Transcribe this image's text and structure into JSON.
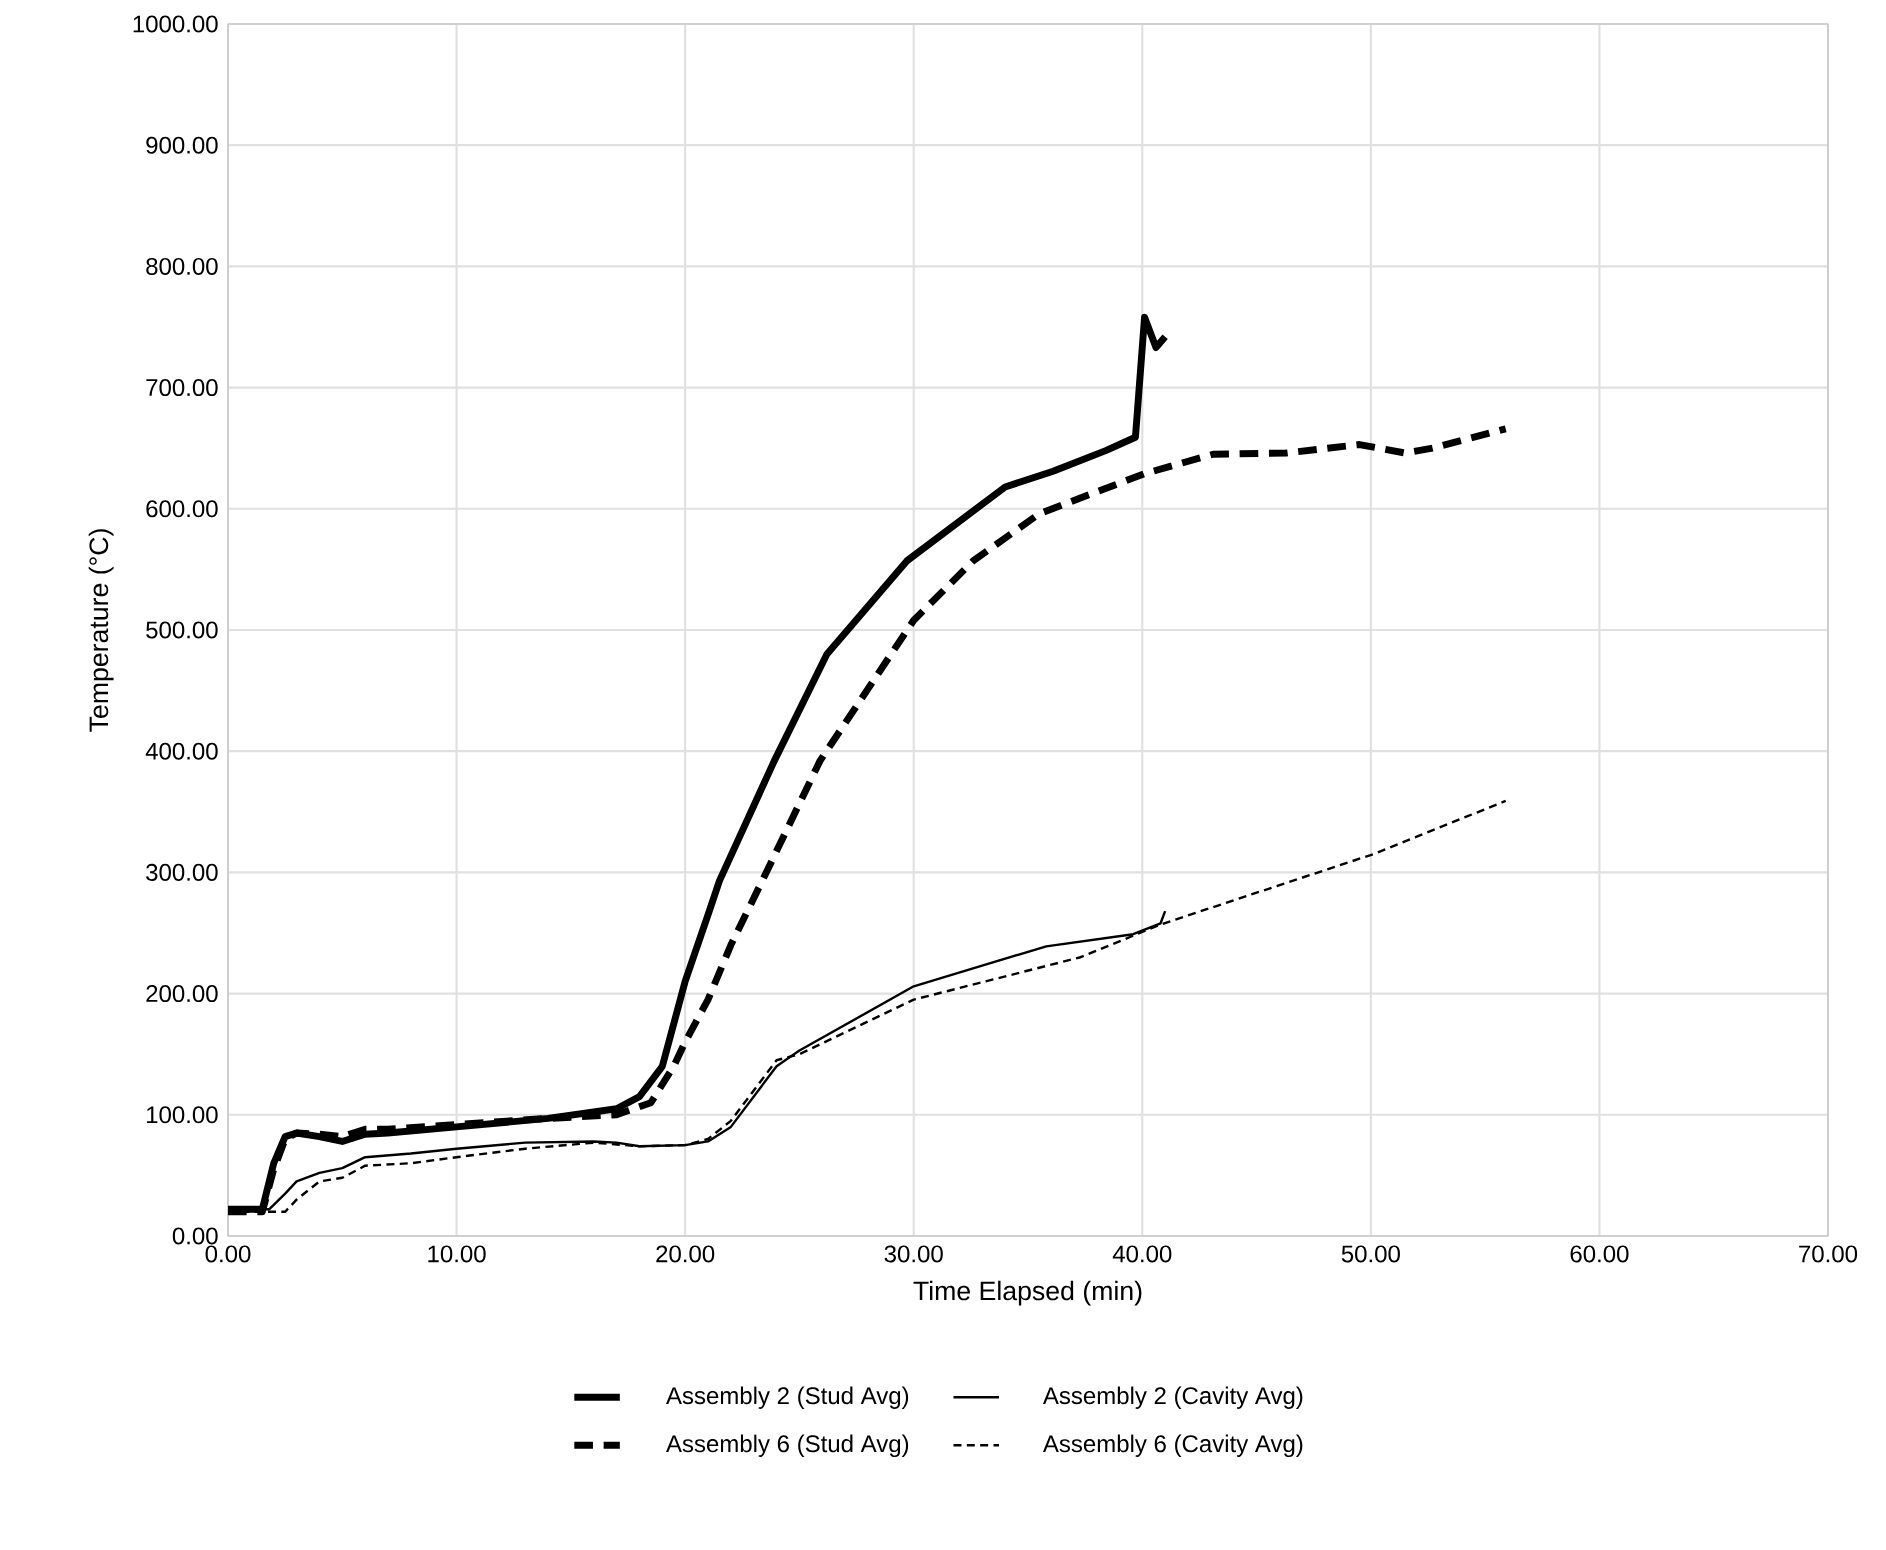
{
  "chart_data": {
    "type": "line",
    "xlabel": "Time Elapsed (min)",
    "ylabel": "Temperature (°C)",
    "xlim": [
      0,
      70
    ],
    "ylim": [
      0,
      1000
    ],
    "xticks": [
      {
        "value": 0,
        "label": "0.00"
      },
      {
        "value": 10,
        "label": "10.00"
      },
      {
        "value": 20,
        "label": "20.00"
      },
      {
        "value": 30,
        "label": "30.00"
      },
      {
        "value": 40,
        "label": "40.00"
      },
      {
        "value": 50,
        "label": "50.00"
      },
      {
        "value": 60,
        "label": "60.00"
      },
      {
        "value": 70,
        "label": "70.00"
      }
    ],
    "yticks": [
      {
        "value": 0,
        "label": "0.00"
      },
      {
        "value": 100,
        "label": "100.00"
      },
      {
        "value": 200,
        "label": "200.00"
      },
      {
        "value": 300,
        "label": "300.00"
      },
      {
        "value": 400,
        "label": "400.00"
      },
      {
        "value": 500,
        "label": "500.00"
      },
      {
        "value": 600,
        "label": "600.00"
      },
      {
        "value": 700,
        "label": "700.00"
      },
      {
        "value": 800,
        "label": "800.00"
      },
      {
        "value": 900,
        "label": "900.00"
      },
      {
        "value": 1000,
        "label": "1000.00"
      }
    ],
    "grid": true,
    "legend": "bottom",
    "marker": "none",
    "series": [
      {
        "name": "Assembly 2 (Stud Avg)",
        "color": "#000000",
        "line_style": "solid",
        "x": [
          0,
          1.5,
          2.0,
          2.5,
          3,
          4,
          5,
          6,
          7,
          10,
          14,
          17,
          18,
          19,
          20,
          21,
          21.5,
          23.9,
          26.2,
          29.7,
          34,
          36.1,
          38.4,
          39.7,
          40.1,
          40.6,
          41
        ],
        "values": [
          22,
          22,
          60,
          82,
          85,
          82,
          78,
          84,
          85,
          90,
          97,
          105,
          115,
          140,
          210,
          265,
          293,
          392,
          480,
          557,
          618,
          631,
          648,
          659,
          758,
          733,
          742
        ]
      },
      {
        "name": "Assembly 2 (Cavity Avg)",
        "color": "#000000",
        "line_style": "solid",
        "x": [
          0,
          1.8,
          2.5,
          3,
          4,
          5,
          6,
          8,
          10,
          13,
          16,
          17,
          18,
          20,
          21,
          22,
          23,
          24,
          25,
          30,
          35.8,
          39.6,
          40.8,
          41
        ],
        "values": [
          22,
          22,
          35,
          45,
          52,
          56,
          65,
          68,
          72,
          77,
          78,
          77,
          74,
          75,
          78,
          90,
          115,
          140,
          153,
          206,
          239,
          249,
          258,
          268
        ]
      },
      {
        "name": "Assembly 6 (Stud Avg)",
        "color": "#000000",
        "line_style": "dashed",
        "x": [
          0,
          1.5,
          2.0,
          2.5,
          3,
          4,
          5,
          6,
          7,
          10,
          14,
          17,
          18.5,
          19.5,
          20,
          21,
          22,
          23.5,
          25.9,
          30,
          32.6,
          35.5,
          40.1,
          43.1,
          46.3,
          49.5,
          51.5,
          52.7,
          55.9
        ],
        "values": [
          20,
          20,
          55,
          80,
          85,
          84,
          82,
          88,
          88,
          92,
          97,
          100,
          110,
          140,
          160,
          195,
          240,
          298,
          392,
          508,
          557,
          596,
          629,
          645,
          646,
          653,
          646,
          650,
          666
        ]
      },
      {
        "name": "Assembly 6 (Cavity Avg)",
        "color": "#000000",
        "line_style": "dashed",
        "x": [
          0,
          2.5,
          3,
          4,
          5,
          6,
          8,
          10,
          13,
          16,
          18,
          20,
          21,
          22,
          23,
          24,
          25,
          30,
          37.3,
          40.8,
          50.1,
          55.9
        ],
        "values": [
          20,
          20,
          30,
          45,
          48,
          58,
          60,
          65,
          72,
          77,
          74,
          75,
          80,
          95,
          120,
          145,
          150,
          195,
          230,
          257,
          315,
          359
        ]
      }
    ]
  }
}
